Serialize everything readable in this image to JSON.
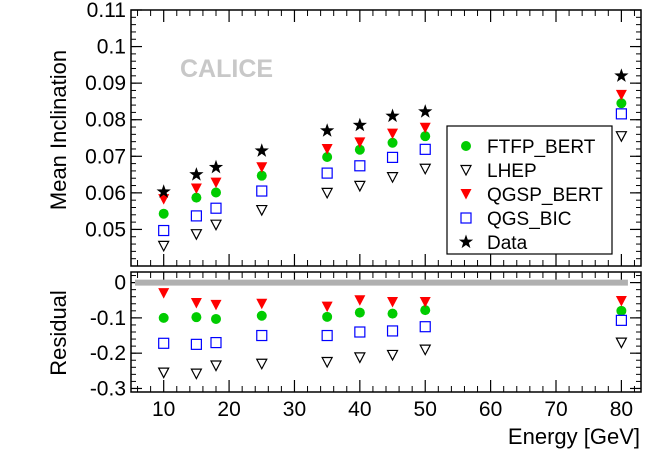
{
  "chart_data": [
    {
      "type": "scatter",
      "panel": "top",
      "title": "",
      "xlabel": "Energy [GeV]",
      "ylabel": "Mean Inclination",
      "xlim": [
        5,
        83
      ],
      "ylim": [
        0.04,
        0.11
      ],
      "yticks": [
        0.05,
        0.06,
        0.07,
        0.08,
        0.09,
        0.1,
        0.11
      ],
      "ytick_labels": [
        "0.05",
        "0.06",
        "0.07",
        "0.08",
        "0.09",
        "0.1",
        "0.11"
      ],
      "annotation": "CALICE",
      "legend_position": "right",
      "x": [
        10,
        15,
        18,
        25,
        35,
        40,
        45,
        50,
        80
      ],
      "series": [
        {
          "name": "FTFP_BERT",
          "marker": "circle",
          "color": "#00cc00",
          "values": [
            0.0543,
            0.0587,
            0.0601,
            0.0647,
            0.0698,
            0.0718,
            0.0737,
            0.0755,
            0.0845
          ]
        },
        {
          "name": "LHEP",
          "marker": "triangle-down-open",
          "color": "#000000",
          "values": [
            0.0455,
            0.0487,
            0.0513,
            0.0553,
            0.06,
            0.0619,
            0.0643,
            0.0666,
            0.0755
          ]
        },
        {
          "name": "QGSP_BERT",
          "marker": "triangle-down",
          "color": "#ff0000",
          "values": [
            0.0583,
            0.0612,
            0.0628,
            0.067,
            0.072,
            0.0738,
            0.0762,
            0.0778,
            0.0868
          ]
        },
        {
          "name": "QGS_BIC",
          "marker": "square-open",
          "color": "#0000ff",
          "values": [
            0.0497,
            0.0537,
            0.0558,
            0.0605,
            0.0654,
            0.0674,
            0.0697,
            0.0719,
            0.0816
          ]
        },
        {
          "name": "Data",
          "marker": "star",
          "color": "#000000",
          "values": [
            0.0603,
            0.065,
            0.067,
            0.0715,
            0.077,
            0.0785,
            0.081,
            0.0822,
            0.092
          ]
        }
      ]
    },
    {
      "type": "scatter",
      "panel": "bottom",
      "title": "",
      "xlabel": "Energy [GeV]",
      "ylabel": "Residual",
      "xlim": [
        5,
        83
      ],
      "ylim": [
        -0.31,
        0.03
      ],
      "yticks": [
        0,
        -0.1,
        -0.2,
        -0.3
      ],
      "ytick_labels": [
        "0",
        "-0.1",
        "-0.2",
        "-0.3"
      ],
      "xticks": [
        10,
        20,
        30,
        40,
        50,
        60,
        70,
        80
      ],
      "xtick_labels": [
        "10",
        "20",
        "30",
        "40",
        "50",
        "60",
        "70",
        "80"
      ],
      "x": [
        10,
        15,
        18,
        25,
        35,
        40,
        45,
        50,
        80
      ],
      "series": [
        {
          "name": "FTFP_BERT",
          "marker": "circle",
          "color": "#00cc00",
          "values": [
            -0.1,
            -0.098,
            -0.103,
            -0.094,
            -0.097,
            -0.085,
            -0.088,
            -0.078,
            -0.08
          ]
        },
        {
          "name": "LHEP",
          "marker": "triangle-down-open",
          "color": "#000000",
          "values": [
            -0.255,
            -0.258,
            -0.235,
            -0.23,
            -0.225,
            -0.212,
            -0.205,
            -0.19,
            -0.17
          ]
        },
        {
          "name": "QGSP_BERT",
          "marker": "triangle-down",
          "color": "#ff0000",
          "values": [
            -0.03,
            -0.058,
            -0.063,
            -0.06,
            -0.068,
            -0.05,
            -0.055,
            -0.055,
            -0.052
          ]
        },
        {
          "name": "QGS_BIC",
          "marker": "square-open",
          "color": "#0000ff",
          "values": [
            -0.172,
            -0.175,
            -0.17,
            -0.15,
            -0.15,
            -0.14,
            -0.137,
            -0.125,
            -0.107
          ]
        }
      ]
    }
  ]
}
